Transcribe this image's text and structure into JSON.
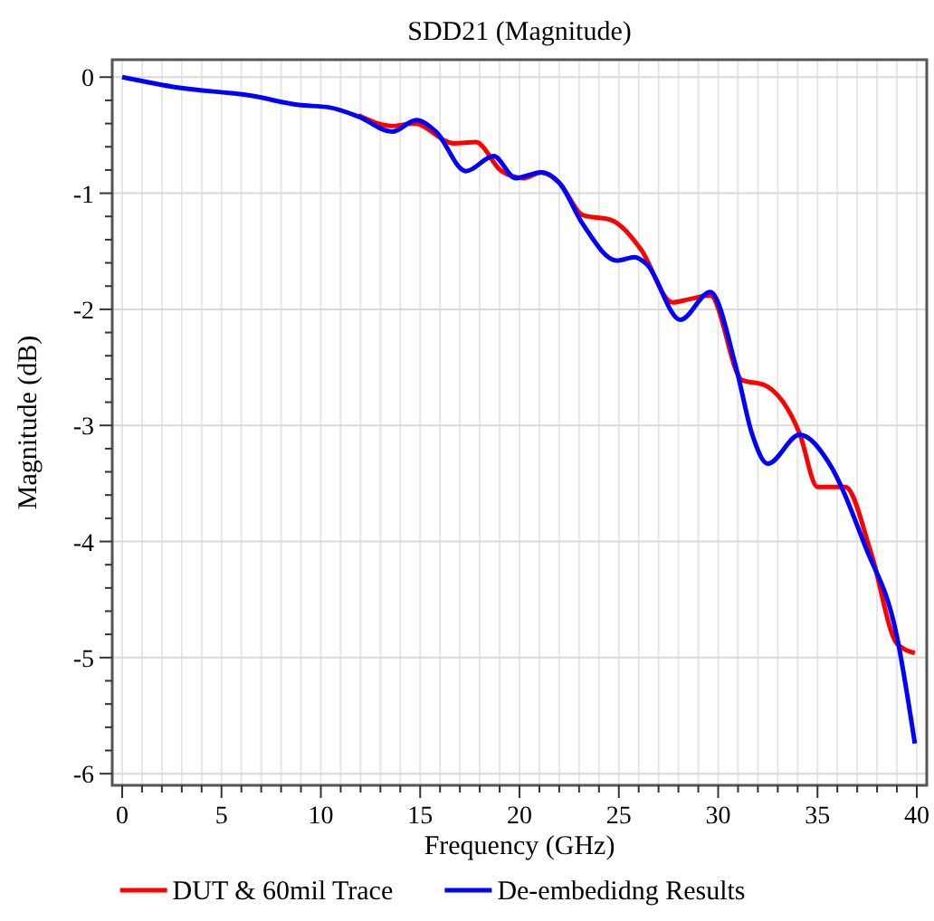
{
  "chart_data": {
    "type": "line",
    "title": "SDD21 (Magnitude)",
    "xlabel": "Frequency (GHz)",
    "ylabel": "Magnitude (dB)",
    "xlim": [
      -0.5,
      40.5
    ],
    "ylim": [
      -6.1,
      0.15
    ],
    "xticks": [
      0,
      {
        "value": 1,
        "label": null
      },
      {
        "value": 2,
        "label": null
      },
      {
        "value": 3,
        "label": null
      },
      {
        "value": 4,
        "label": null
      },
      5,
      {
        "value": 6,
        "label": null
      },
      {
        "value": 7,
        "label": null
      },
      {
        "value": 8,
        "label": null
      },
      {
        "value": 9,
        "label": null
      },
      10,
      {
        "value": 11,
        "label": null
      },
      {
        "value": 12,
        "label": null
      },
      {
        "value": 13,
        "label": null
      },
      {
        "value": 14,
        "label": null
      },
      15,
      {
        "value": 16,
        "label": null
      },
      {
        "value": 17,
        "label": null
      },
      {
        "value": 18,
        "label": null
      },
      {
        "value": 19,
        "label": null
      },
      20,
      {
        "value": 21,
        "label": null
      },
      {
        "value": 22,
        "label": null
      },
      {
        "value": 23,
        "label": null
      },
      {
        "value": 24,
        "label": null
      },
      25,
      {
        "value": 26,
        "label": null
      },
      {
        "value": 27,
        "label": null
      },
      {
        "value": 28,
        "label": null
      },
      {
        "value": 29,
        "label": null
      },
      30,
      {
        "value": 31,
        "label": null
      },
      {
        "value": 32,
        "label": null
      },
      {
        "value": 33,
        "label": null
      },
      {
        "value": 34,
        "label": null
      },
      35,
      {
        "value": 36,
        "label": null
      },
      {
        "value": 37,
        "label": null
      },
      {
        "value": 38,
        "label": null
      },
      {
        "value": 39,
        "label": null
      },
      40
    ],
    "yticks": [
      0,
      {
        "value": -0.2,
        "label": null
      },
      {
        "value": -0.4,
        "label": null
      },
      {
        "value": -0.6,
        "label": null
      },
      {
        "value": -0.8,
        "label": null
      },
      -1,
      {
        "value": -1.2,
        "label": null
      },
      {
        "value": -1.4,
        "label": null
      },
      {
        "value": -1.6,
        "label": null
      },
      {
        "value": -1.8,
        "label": null
      },
      -2,
      {
        "value": -2.2,
        "label": null
      },
      {
        "value": -2.4,
        "label": null
      },
      {
        "value": -2.6,
        "label": null
      },
      {
        "value": -2.8,
        "label": null
      },
      -3,
      {
        "value": -3.2,
        "label": null
      },
      {
        "value": -3.4,
        "label": null
      },
      {
        "value": -3.6,
        "label": null
      },
      {
        "value": -3.8,
        "label": null
      },
      -4,
      {
        "value": -4.2,
        "label": null
      },
      {
        "value": -4.4,
        "label": null
      },
      {
        "value": -4.6,
        "label": null
      },
      {
        "value": -4.8,
        "label": null
      },
      -5,
      {
        "value": -5.2,
        "label": null
      },
      {
        "value": -5.4,
        "label": null
      },
      {
        "value": -5.6,
        "label": null
      },
      {
        "value": -5.8,
        "label": null
      },
      -6
    ],
    "grid": true,
    "legend": "bottom",
    "marker": "none",
    "line_style": "solid",
    "series": [
      {
        "name": "DUT & 60mil Trace",
        "color": "#ff0000",
        "x": [
          11.9,
          13.6,
          14.7,
          16.7,
          17.8,
          19.1,
          20.2,
          21.1,
          22,
          23.2,
          24.6,
          26.1,
          27.7,
          28.6,
          29.6,
          31.2,
          32.3,
          34.1,
          35,
          36.4,
          37.7,
          39,
          39.9
        ],
        "values": [
          -0.33,
          -0.42,
          -0.4,
          -0.57,
          -0.56,
          -0.81,
          -0.87,
          -0.82,
          -0.91,
          -1.19,
          -1.23,
          -1.48,
          -1.94,
          -1.91,
          -1.88,
          -2.61,
          -2.65,
          -3.07,
          -3.53,
          -3.53,
          -4.1,
          -4.88,
          -4.96
        ]
      },
      {
        "name": "De-embedidng Results",
        "color": "#0000ff",
        "x": [
          0,
          2.8,
          6.5,
          8.9,
          10.4,
          11.9,
          13.6,
          14.8,
          15.8,
          17.3,
          18.7,
          19.8,
          21.1,
          22,
          23.2,
          24.9,
          25.8,
          26.4,
          28.1,
          29.6,
          30.9,
          31.7,
          32.5,
          34.1,
          35.6,
          37.4,
          39,
          39.9
        ],
        "values": [
          0,
          -0.09,
          -0.16,
          -0.24,
          -0.26,
          -0.34,
          -0.47,
          -0.37,
          -0.47,
          -0.81,
          -0.68,
          -0.87,
          -0.82,
          -0.91,
          -1.27,
          -1.58,
          -1.55,
          -1.61,
          -2.09,
          -1.85,
          -2.5,
          -3.07,
          -3.33,
          -3.08,
          -3.33,
          -4.04,
          -4.82,
          -5.74
        ]
      }
    ]
  }
}
